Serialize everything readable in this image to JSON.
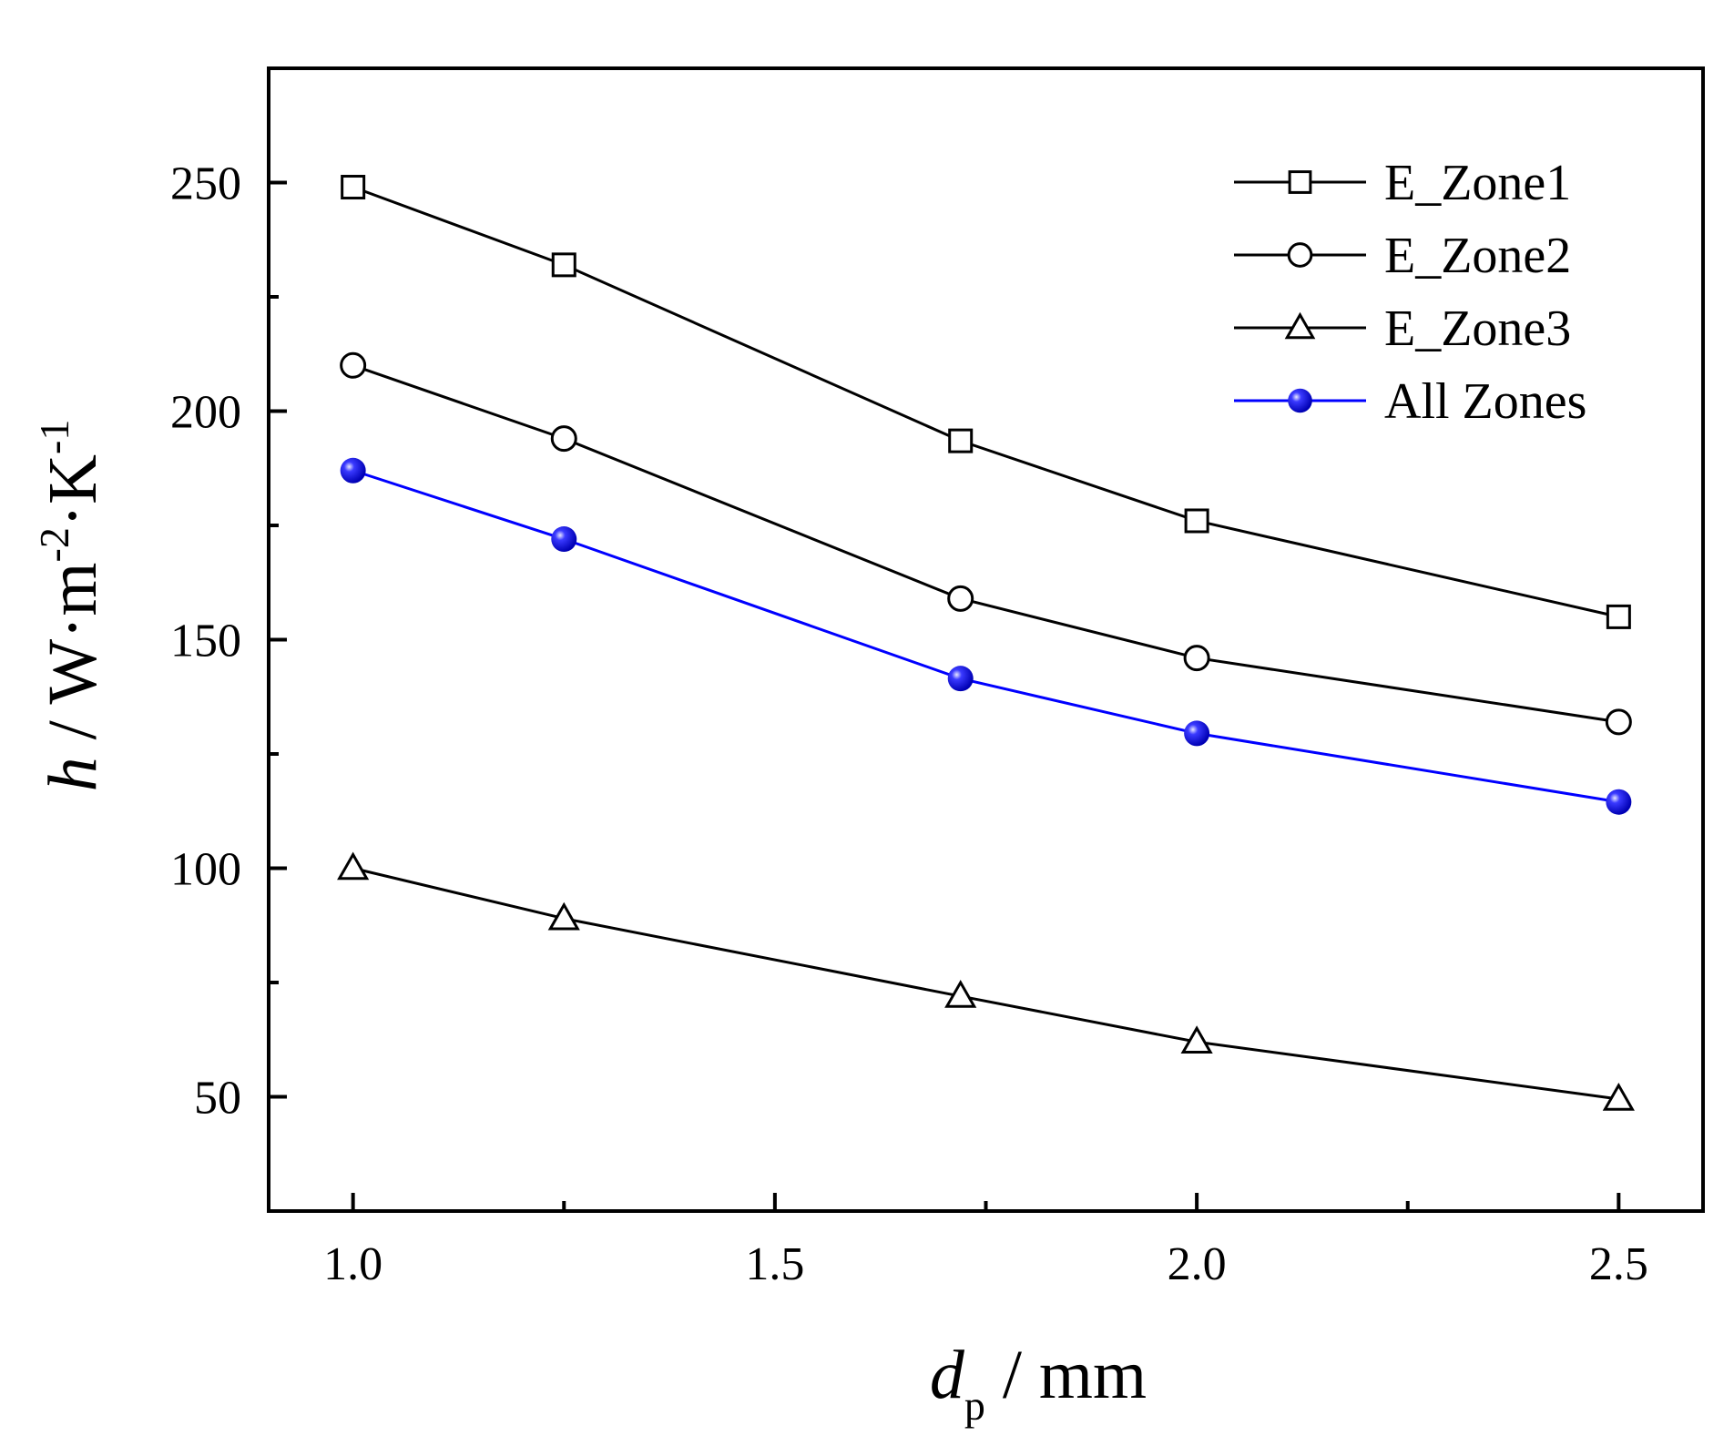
{
  "chart_data": {
    "type": "line",
    "x": [
      1.0,
      1.25,
      1.72,
      2.0,
      2.5
    ],
    "series": [
      {
        "name": "E_Zone1",
        "marker": "open-square",
        "color": "#000000",
        "values": [
          249,
          232,
          193.5,
          176,
          155
        ]
      },
      {
        "name": "E_Zone2",
        "marker": "open-circle",
        "color": "#000000",
        "values": [
          210,
          194,
          159,
          146,
          132
        ]
      },
      {
        "name": "E_Zone3",
        "marker": "open-triangle",
        "color": "#000000",
        "values": [
          100,
          89,
          72,
          62,
          49.5
        ]
      },
      {
        "name": "All Zones",
        "marker": "filled-sphere",
        "color": "#0000ff",
        "values": [
          187,
          172,
          141.5,
          129.5,
          114.5
        ]
      }
    ],
    "xlim": [
      0.9,
      2.6
    ],
    "ylim": [
      25,
      275
    ],
    "xticks": [
      1.0,
      1.5,
      2.0,
      2.5
    ],
    "xtick_labels": [
      "1.0",
      "1.5",
      "2.0",
      "2.5"
    ],
    "yticks": [
      50,
      100,
      150,
      200,
      250
    ],
    "ytick_labels": [
      "50",
      "100",
      "150",
      "200",
      "250"
    ],
    "xlabel": {
      "italic": "d",
      "subscript": "p",
      "rest": " / mm"
    },
    "ylabel": {
      "italic": "h",
      "rest": " / W·m",
      "sup1": "-2",
      "mid": "·K",
      "sup2": "-1"
    },
    "legend": "top-right",
    "grid": false
  }
}
